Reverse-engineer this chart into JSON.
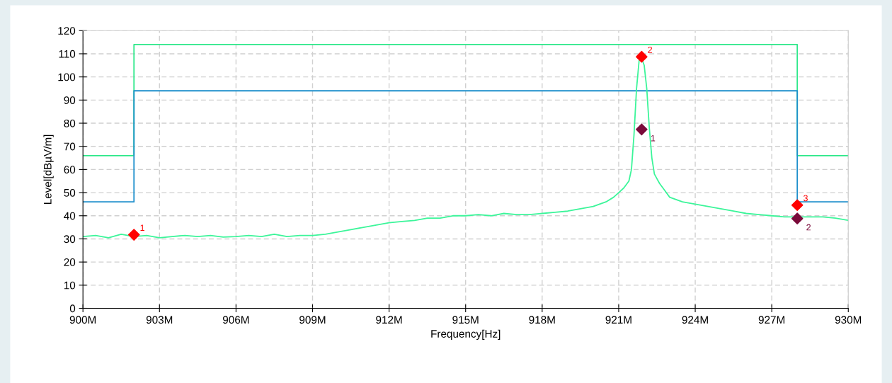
{
  "chart_data": {
    "type": "line",
    "xlabel": "Frequency[Hz]",
    "ylabel": "Level[dBµV/m]",
    "xlim": [
      900,
      930
    ],
    "ylim": [
      0,
      120
    ],
    "xticks": [
      {
        "value": 900,
        "label": "900M"
      },
      {
        "value": 903,
        "label": "903M"
      },
      {
        "value": 906,
        "label": "906M"
      },
      {
        "value": 909,
        "label": "909M"
      },
      {
        "value": 912,
        "label": "912M"
      },
      {
        "value": 915,
        "label": "915M"
      },
      {
        "value": 918,
        "label": "918M"
      },
      {
        "value": 921,
        "label": "921M"
      },
      {
        "value": 924,
        "label": "924M"
      },
      {
        "value": 927,
        "label": "927M"
      },
      {
        "value": 930,
        "label": "930M"
      }
    ],
    "yticks": [
      0,
      10,
      20,
      30,
      40,
      50,
      60,
      70,
      80,
      90,
      100,
      110,
      120
    ],
    "grid": true,
    "legend": false,
    "line_style": "solid",
    "marker": "none",
    "series": [
      {
        "color": "#2ee88a",
        "x": [
          900,
          902,
          902,
          928,
          928,
          930
        ],
        "values": [
          66,
          66,
          114,
          114,
          66,
          66
        ]
      },
      {
        "color": "#1e8fcc",
        "x": [
          900,
          902,
          902,
          928,
          928,
          930
        ],
        "values": [
          46,
          46,
          94,
          94,
          46,
          46
        ]
      },
      {
        "color": "#3cf59a",
        "x": [
          900,
          900.5,
          901,
          901.5,
          902,
          902.5,
          903,
          903.5,
          904,
          904.5,
          905,
          905.5,
          906,
          906.5,
          907,
          907.5,
          908,
          908.5,
          909,
          909.5,
          910,
          910.5,
          911,
          911.5,
          912,
          912.5,
          913,
          913.5,
          914,
          914.5,
          915,
          915.5,
          916,
          916.5,
          917,
          917.5,
          918,
          918.5,
          919,
          919.5,
          920,
          920.5,
          920.8,
          921,
          921.2,
          921.4,
          921.5,
          921.6,
          921.7,
          921.8,
          921.9,
          922.0,
          922.1,
          922.2,
          922.3,
          922.4,
          922.6,
          922.8,
          923,
          923.5,
          924,
          924.5,
          925,
          925.5,
          926,
          926.5,
          927,
          927.5,
          928,
          928.5,
          929,
          929.5,
          930
        ],
        "values": [
          31,
          31.5,
          30.5,
          32,
          31,
          31.5,
          30.5,
          31,
          31.5,
          31,
          31.5,
          30.8,
          31,
          31.5,
          31,
          32,
          31,
          31.5,
          31.5,
          32,
          33,
          34,
          35,
          36,
          37,
          37.5,
          38,
          39,
          39,
          40,
          40,
          40.5,
          40,
          41,
          40.5,
          40.5,
          41,
          41.5,
          42,
          43,
          44,
          46,
          48,
          50,
          52,
          55,
          60,
          75,
          95,
          107,
          108,
          105,
          95,
          78,
          65,
          58,
          54,
          51,
          48,
          46,
          45,
          44,
          43,
          42,
          41,
          40.5,
          40,
          39.5,
          39.5,
          39.5,
          39.5,
          39,
          38
        ]
      },
      {
        "type": "scatter",
        "color": "#ff0000",
        "marker": "diamond",
        "x": [
          902,
          921.9,
          928
        ],
        "values": [
          31.8,
          108.7,
          44.6
        ]
      },
      {
        "type": "scatter",
        "color": "#7a0a3a",
        "marker": "diamond",
        "x": [
          921.9,
          928
        ],
        "values": [
          77.3,
          38.8
        ]
      }
    ],
    "annotations": [
      {
        "text": "1",
        "x": 902,
        "y": 31.8
      },
      {
        "text": "2",
        "x": 921.9,
        "y": 108.7
      },
      {
        "text": "3",
        "x": 928,
        "y": 44.6
      },
      {
        "text": "1",
        "x": 921.9,
        "y": 77.3
      },
      {
        "text": "2",
        "x": 928,
        "y": 38.8
      }
    ]
  }
}
